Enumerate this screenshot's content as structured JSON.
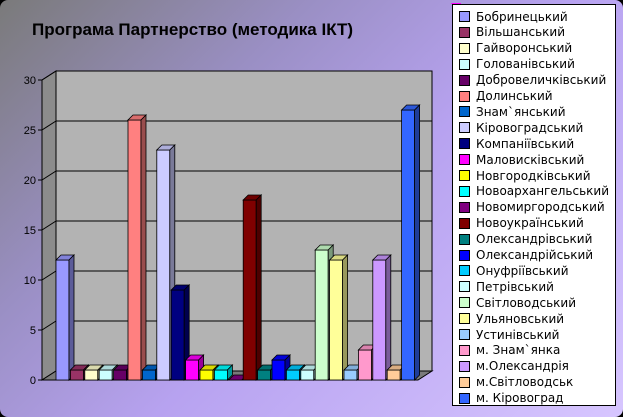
{
  "chart_data": {
    "type": "bar",
    "title": "Програма Партнерство (методика ІКТ)",
    "ylim": [
      0,
      30
    ],
    "yticks": [
      "0",
      "5",
      "10",
      "15",
      "20",
      "25",
      "30"
    ],
    "grid": true,
    "legend_position": "right",
    "series": [
      {
        "name": "Бобринецький",
        "color": "#9999ff",
        "values": [
          12
        ]
      },
      {
        "name": "Вільшанський",
        "color": "#993366",
        "values": [
          1
        ]
      },
      {
        "name": "Гайворонський",
        "color": "#ffffcc",
        "values": [
          1
        ]
      },
      {
        "name": "Голованівський",
        "color": "#ccffff",
        "values": [
          1
        ]
      },
      {
        "name": "Добровеличківський",
        "color": "#660066",
        "values": [
          1
        ]
      },
      {
        "name": "Долинський",
        "color": "#ff8080",
        "values": [
          26
        ]
      },
      {
        "name": "Знам`янський",
        "color": "#0066cc",
        "values": [
          1
        ]
      },
      {
        "name": "Кіровоградський",
        "color": "#ccccff",
        "values": [
          23
        ]
      },
      {
        "name": "Компаніївський",
        "color": "#000080",
        "values": [
          9
        ]
      },
      {
        "name": "Маловисківський",
        "color": "#ff00ff",
        "values": [
          2
        ]
      },
      {
        "name": "Новгородківський",
        "color": "#ffff00",
        "values": [
          1
        ]
      },
      {
        "name": "Новоархангельський",
        "color": "#00ffff",
        "values": [
          1
        ]
      },
      {
        "name": "Новомиргородський",
        "color": "#800080",
        "values": [
          0
        ]
      },
      {
        "name": "Новоукраїнський",
        "color": "#800000",
        "values": [
          18
        ]
      },
      {
        "name": "Олександрівський",
        "color": "#008080",
        "values": [
          1
        ]
      },
      {
        "name": "Олександрійський",
        "color": "#0000ff",
        "values": [
          2
        ]
      },
      {
        "name": "Онуфріївський",
        "color": "#00ccff",
        "values": [
          1
        ]
      },
      {
        "name": "Петрівський",
        "color": "#ccffff",
        "values": [
          1
        ]
      },
      {
        "name": "Світловодський",
        "color": "#ccffcc",
        "values": [
          13
        ]
      },
      {
        "name": "Ульяновський",
        "color": "#ffff99",
        "values": [
          12
        ]
      },
      {
        "name": "Устинівський",
        "color": "#99ccff",
        "values": [
          1
        ]
      },
      {
        "name": "м. Знам`янка",
        "color": "#ff99cc",
        "values": [
          3
        ]
      },
      {
        "name": "м.Олександрія",
        "color": "#cc99ff",
        "values": [
          12
        ]
      },
      {
        "name": "м.Світловодськ",
        "color": "#ffcc99",
        "values": [
          1
        ]
      },
      {
        "name": "м. Кіровоград",
        "color": "#3366ff",
        "values": [
          27
        ]
      }
    ]
  }
}
